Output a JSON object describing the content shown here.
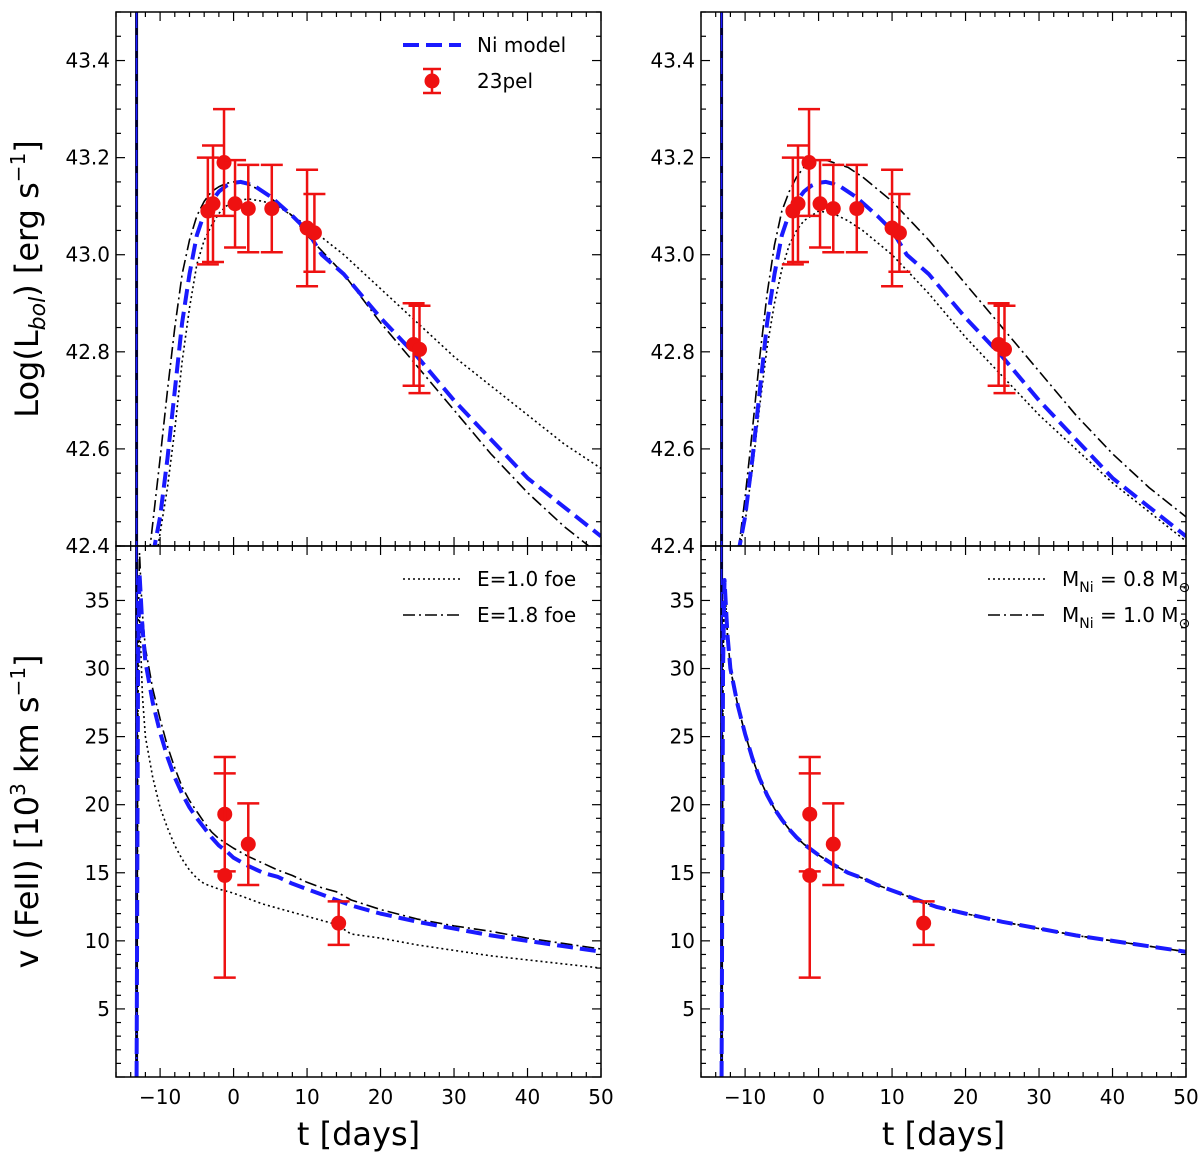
{
  "chart_data": [
    {
      "panel": "top-left",
      "type": "line",
      "xlim": [
        -16,
        50
      ],
      "ylim": [
        42.4,
        43.5
      ],
      "xticks": [
        -10,
        0,
        10,
        20,
        30,
        40,
        50
      ],
      "yticks": [
        42.6,
        42.8,
        43.0,
        43.2,
        43.4
      ],
      "ytick_labels": [
        "42.6",
        "42.8",
        "43.0",
        "43.2",
        "43.4"
      ],
      "corner_label": "42.4",
      "ylabel_main": "Log(L",
      "ylabel_sub": "bol",
      "ylabel_tail": ") [erg s",
      "ylabel_sup": "−1",
      "ylabel_end": "]",
      "vline_x": -13.2,
      "legend": {
        "placement": "top-right",
        "entries": [
          {
            "label": "Ni model",
            "style": "dashed",
            "color": "#1a1aff"
          },
          {
            "label": "23pel",
            "style": "errorbar",
            "color": "#ee1111"
          }
        ]
      },
      "series": [
        {
          "name": "Ni model",
          "style": "dashed",
          "color": "#1a1aff",
          "x": [
            -11.0,
            -10,
            -9,
            -8,
            -7,
            -6,
            -5,
            -4,
            -3,
            -2,
            -1,
            0,
            1,
            2,
            3,
            5,
            8,
            10,
            12,
            15,
            20,
            25,
            30,
            35,
            40,
            45,
            50
          ],
          "y": [
            42.38,
            42.46,
            42.58,
            42.72,
            42.86,
            42.96,
            43.04,
            43.085,
            43.11,
            43.13,
            43.142,
            43.148,
            43.15,
            43.146,
            43.14,
            43.12,
            43.08,
            43.05,
            43.0,
            42.96,
            42.87,
            42.79,
            42.7,
            42.62,
            42.54,
            42.48,
            42.42
          ]
        },
        {
          "style": "dotted",
          "color": "#000000",
          "x": [
            -10.5,
            -9,
            -8,
            -7,
            -6,
            -5,
            -4,
            -3,
            -2,
            -1,
            0,
            2,
            4,
            6,
            8,
            10,
            15,
            20,
            25,
            30,
            35,
            40,
            45,
            50
          ],
          "y": [
            42.38,
            42.52,
            42.64,
            42.78,
            42.89,
            42.98,
            43.03,
            43.06,
            43.085,
            43.1,
            43.11,
            43.115,
            43.11,
            43.1,
            43.08,
            43.06,
            43.0,
            42.93,
            42.86,
            42.79,
            42.73,
            42.67,
            42.61,
            42.56
          ]
        },
        {
          "style": "dashdot",
          "color": "#000000",
          "x": [
            -11.5,
            -10,
            -9,
            -8,
            -7,
            -6,
            -5,
            -4,
            -3,
            -2,
            -1,
            0,
            2,
            4,
            8,
            10,
            15,
            20,
            25,
            30,
            35,
            40,
            45,
            50
          ],
          "y": [
            42.38,
            42.58,
            42.72,
            42.85,
            42.96,
            43.03,
            43.08,
            43.11,
            43.13,
            43.14,
            43.147,
            43.15,
            43.145,
            43.13,
            43.08,
            43.04,
            42.96,
            42.86,
            42.77,
            42.68,
            42.59,
            42.51,
            42.44,
            42.38
          ]
        }
      ],
      "points": {
        "name": "23pel",
        "color": "#ee1111",
        "x": [
          -3.5,
          -2.8,
          -1.3,
          0.2,
          2.0,
          5.2,
          10.0,
          11.0,
          24.5,
          25.3
        ],
        "y": [
          43.09,
          43.105,
          43.19,
          43.105,
          43.095,
          43.095,
          43.055,
          43.045,
          42.815,
          42.805
        ],
        "err": [
          0.11,
          0.12,
          0.11,
          0.09,
          0.09,
          0.09,
          0.12,
          0.08,
          0.085,
          0.09
        ]
      }
    },
    {
      "panel": "top-right",
      "type": "line",
      "xlim": [
        -16,
        50
      ],
      "ylim": [
        42.4,
        43.5
      ],
      "xticks": [
        -10,
        0,
        10,
        20,
        30,
        40,
        50
      ],
      "yticks": [
        42.6,
        42.8,
        43.0,
        43.2,
        43.4
      ],
      "ytick_labels": [
        "42.6",
        "42.8",
        "43.0",
        "43.2",
        "43.4"
      ],
      "corner_label": "42.4",
      "vline_x": -13.2,
      "series": [
        {
          "style": "dashed",
          "color": "#1a1aff",
          "x": [
            -11.0,
            -10,
            -9,
            -8,
            -7,
            -6,
            -5,
            -4,
            -3,
            -2,
            -1,
            0,
            1,
            2,
            3,
            5,
            8,
            10,
            12,
            15,
            20,
            25,
            30,
            35,
            40,
            45,
            50
          ],
          "y": [
            42.38,
            42.46,
            42.58,
            42.72,
            42.86,
            42.96,
            43.04,
            43.085,
            43.11,
            43.13,
            43.142,
            43.148,
            43.15,
            43.146,
            43.14,
            43.12,
            43.08,
            43.05,
            43.0,
            42.96,
            42.87,
            42.79,
            42.7,
            42.62,
            42.54,
            42.48,
            42.42
          ]
        },
        {
          "style": "dotted",
          "color": "#000000",
          "x": [
            -11.0,
            -10,
            -9,
            -8,
            -7,
            -6,
            -5,
            -4,
            -3,
            -2,
            -1,
            0,
            2,
            4,
            6,
            10,
            15,
            20,
            25,
            30,
            35,
            40,
            45,
            50
          ],
          "y": [
            42.38,
            42.45,
            42.56,
            42.69,
            42.81,
            42.9,
            42.97,
            43.02,
            43.05,
            43.07,
            43.08,
            43.09,
            43.085,
            43.07,
            43.05,
            43.0,
            42.92,
            42.83,
            42.75,
            42.67,
            42.6,
            42.53,
            42.47,
            42.41
          ]
        },
        {
          "style": "dashdot",
          "color": "#000000",
          "x": [
            -11.0,
            -10,
            -9,
            -8,
            -7,
            -6,
            -5,
            -4,
            -3,
            -2,
            -1,
            0,
            1,
            2,
            4,
            6,
            10,
            15,
            20,
            25,
            30,
            35,
            40,
            45,
            50
          ],
          "y": [
            42.38,
            42.5,
            42.64,
            42.79,
            42.92,
            43.02,
            43.09,
            43.13,
            43.16,
            43.18,
            43.19,
            43.195,
            43.195,
            43.19,
            43.18,
            43.16,
            43.11,
            43.03,
            42.94,
            42.85,
            42.76,
            42.67,
            42.59,
            42.52,
            42.46
          ]
        }
      ],
      "points": {
        "name": "23pel",
        "color": "#ee1111",
        "x": [
          -3.5,
          -2.8,
          -1.3,
          0.2,
          2.0,
          5.2,
          10.0,
          11.0,
          24.5,
          25.3
        ],
        "y": [
          43.09,
          43.105,
          43.19,
          43.105,
          43.095,
          43.095,
          43.055,
          43.045,
          42.815,
          42.805
        ],
        "err": [
          0.11,
          0.12,
          0.11,
          0.09,
          0.09,
          0.09,
          0.12,
          0.08,
          0.085,
          0.09
        ]
      }
    },
    {
      "panel": "bottom-left",
      "type": "line",
      "xlim": [
        -16,
        50
      ],
      "ylim": [
        0,
        39
      ],
      "xticks": [
        -10,
        0,
        10,
        20,
        30,
        40,
        50
      ],
      "xtick_labels": [
        "−10",
        "0",
        "10",
        "20",
        "30",
        "40",
        "50"
      ],
      "yticks": [
        5,
        10,
        15,
        20,
        25,
        30,
        35
      ],
      "ytick_labels": [
        "5",
        "10",
        "15",
        "20",
        "25",
        "30",
        "35"
      ],
      "xlabel": "t [days]",
      "ylabel_main": "v (FeII)  [10",
      "ylabel_sup": "3",
      "ylabel_tail": " km s",
      "ylabel_sup2": "−1",
      "ylabel_end": "]",
      "vline_x": -13.2,
      "legend": {
        "placement": "top-right",
        "entries": [
          {
            "label": "E=1.0 foe",
            "style": "dotted",
            "color": "#000000"
          },
          {
            "label": "E=1.8 foe",
            "style": "dashdot",
            "color": "#000000"
          }
        ]
      },
      "series": [
        {
          "style": "dashed",
          "color": "#1a1aff",
          "x": [
            -13.2,
            -13.0,
            -12.8,
            -12.6,
            -12.4,
            -12,
            -11,
            -10,
            -9,
            -8,
            -7,
            -6,
            -5,
            -4,
            -3,
            -2,
            -1,
            0,
            2,
            4,
            6,
            8,
            10,
            12,
            14,
            16,
            20,
            25,
            30,
            35,
            40,
            45,
            50
          ],
          "y": [
            0,
            30,
            37,
            35,
            33,
            30.5,
            27.5,
            25.3,
            23.5,
            22.0,
            20.8,
            19.8,
            19.0,
            18.3,
            17.6,
            17.0,
            16.6,
            16.1,
            15.5,
            15.0,
            14.7,
            14.2,
            13.8,
            13.4,
            13.0,
            12.6,
            12.0,
            11.4,
            10.9,
            10.4,
            10.0,
            9.6,
            9.2
          ]
        },
        {
          "style": "dotted",
          "color": "#000000",
          "x": [
            -13.2,
            -13.0,
            -12.8,
            -12.6,
            -12.4,
            -12,
            -11,
            -10,
            -9,
            -8,
            -7,
            -6,
            -5,
            -4,
            -2,
            0,
            2,
            4,
            6,
            8,
            10,
            14,
            16,
            20,
            25,
            30,
            35,
            40,
            45,
            50
          ],
          "y": [
            0,
            28,
            34,
            31,
            28,
            25,
            22,
            19.8,
            18.3,
            17.0,
            16.0,
            15.2,
            14.6,
            14.2,
            13.8,
            13.5,
            13.1,
            12.7,
            12.4,
            12.1,
            11.8,
            11.2,
            10.5,
            10.2,
            9.7,
            9.3,
            8.9,
            8.6,
            8.3,
            8.0
          ]
        },
        {
          "style": "dashdot",
          "color": "#000000",
          "x": [
            -13.2,
            -13.0,
            -12.8,
            -12.6,
            -12.4,
            -12,
            -11,
            -10,
            -9,
            -8,
            -7,
            -6,
            -5,
            -4,
            -3,
            -2,
            0,
            2,
            4,
            6,
            8,
            10,
            12,
            14,
            16,
            20,
            25,
            30,
            35,
            40,
            45,
            50
          ],
          "y": [
            0,
            32,
            38.5,
            36,
            34,
            31.5,
            28.5,
            26.3,
            24.3,
            22.7,
            21.3,
            20.3,
            19.5,
            18.7,
            18.0,
            17.5,
            16.8,
            16.2,
            15.7,
            15.2,
            14.8,
            14.3,
            13.9,
            13.6,
            13.0,
            12.3,
            11.6,
            11.1,
            10.7,
            10.2,
            9.8,
            9.4
          ]
        }
      ],
      "points": {
        "name": "23pel",
        "color": "#ee1111",
        "x": [
          -1.2,
          -1.2,
          2.0,
          14.3
        ],
        "y": [
          19.3,
          14.8,
          17.1,
          11.3
        ],
        "err": [
          4.2,
          7.5,
          3.0,
          1.6
        ]
      }
    },
    {
      "panel": "bottom-right",
      "type": "line",
      "xlim": [
        -16,
        50
      ],
      "ylim": [
        0,
        39
      ],
      "xticks": [
        -10,
        0,
        10,
        20,
        30,
        40,
        50
      ],
      "xtick_labels": [
        "−10",
        "0",
        "10",
        "20",
        "30",
        "40",
        "50"
      ],
      "yticks": [
        5,
        10,
        15,
        20,
        25,
        30,
        35
      ],
      "ytick_labels": [
        "5",
        "10",
        "15",
        "20",
        "25",
        "30",
        "35"
      ],
      "xlabel": "t [days]",
      "vline_x": -13.2,
      "legend": {
        "placement": "top-right",
        "entries": [
          {
            "m": "M",
            "sub": "Ni",
            "mid": " = 0.8 M",
            "sub2": "⊙",
            "style": "dotted",
            "color": "#000000"
          },
          {
            "m": "M",
            "sub": "Ni",
            "mid": " = 1.0 M",
            "sub2": "⊙",
            "style": "dashdot",
            "color": "#000000"
          }
        ]
      },
      "series": [
        {
          "style": "dashed",
          "color": "#1a1aff",
          "x": [
            -13.2,
            -13.0,
            -12.8,
            -12.6,
            -12.4,
            -12,
            -11,
            -10,
            -9,
            -8,
            -7,
            -6,
            -5,
            -4,
            -3,
            -2,
            -1,
            0,
            2,
            4,
            6,
            8,
            10,
            12,
            14,
            16,
            20,
            25,
            30,
            35,
            40,
            45,
            50
          ],
          "y": [
            0,
            30,
            36.5,
            34.5,
            32.5,
            30,
            27.3,
            25.2,
            23.4,
            21.9,
            20.7,
            19.7,
            18.9,
            18.2,
            17.6,
            17.1,
            16.7,
            16.3,
            15.6,
            15.0,
            14.6,
            14.1,
            13.7,
            13.3,
            12.9,
            12.5,
            12.0,
            11.4,
            10.9,
            10.4,
            10.0,
            9.6,
            9.2
          ]
        },
        {
          "style": "dotted",
          "color": "#000000",
          "x": [
            -13.2,
            -13.0,
            -12.8,
            -12.6,
            -12.4,
            -12,
            -11,
            -10,
            -9,
            -8,
            -7,
            -6,
            -5,
            -4,
            -3,
            -2,
            -1,
            0,
            2,
            4,
            6,
            8,
            10,
            12,
            14,
            16,
            20,
            25,
            30,
            35,
            40,
            45,
            50
          ],
          "y": [
            0,
            30,
            36.5,
            34.5,
            32.5,
            30,
            27.3,
            25.2,
            23.4,
            21.9,
            20.7,
            19.7,
            18.9,
            18.2,
            17.6,
            17.1,
            16.7,
            16.3,
            15.6,
            15.0,
            14.6,
            14.1,
            13.7,
            13.3,
            12.9,
            12.5,
            12.0,
            11.4,
            10.9,
            10.4,
            10.0,
            9.6,
            9.2
          ]
        },
        {
          "style": "dashdot",
          "color": "#000000",
          "x": [
            -13.2,
            -13.0,
            -12.8,
            -12.6,
            -12.4,
            -12,
            -11,
            -10,
            -9,
            -8,
            -7,
            -6,
            -5,
            -4,
            -3,
            -2,
            -1,
            0,
            2,
            4,
            6,
            8,
            10,
            12,
            14,
            16,
            20,
            25,
            30,
            35,
            40,
            45,
            50
          ],
          "y": [
            0,
            30,
            36.5,
            34.5,
            32.5,
            30,
            27.3,
            25.2,
            23.4,
            21.9,
            20.7,
            19.7,
            18.9,
            18.2,
            17.6,
            17.1,
            16.7,
            16.3,
            15.6,
            15.0,
            14.6,
            14.1,
            13.7,
            13.3,
            12.9,
            12.5,
            12.0,
            11.4,
            10.9,
            10.4,
            10.0,
            9.6,
            9.2
          ]
        }
      ],
      "points": {
        "name": "23pel",
        "color": "#ee1111",
        "x": [
          -1.2,
          -1.2,
          2.0,
          14.3
        ],
        "y": [
          19.3,
          14.8,
          17.1,
          11.3
        ],
        "err": [
          4.2,
          7.5,
          3.0,
          1.6
        ]
      }
    }
  ]
}
